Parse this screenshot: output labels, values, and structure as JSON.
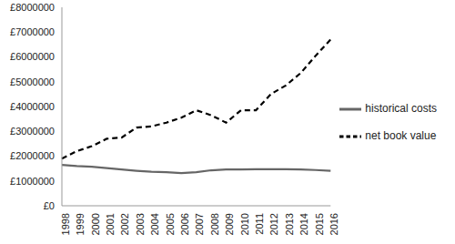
{
  "chart_data": {
    "type": "line",
    "categories": [
      "1998",
      "1999",
      "2000",
      "2001",
      "2002",
      "2003",
      "2004",
      "2005",
      "2006",
      "2007",
      "2008",
      "2009",
      "2010",
      "2011",
      "2012",
      "2013",
      "2014",
      "2015",
      "2016"
    ],
    "series": [
      {
        "name": "net book value",
        "color": "#000000",
        "line_style": "dashed",
        "values": [
          1900000,
          2200000,
          2400000,
          2700000,
          2750000,
          3150000,
          3200000,
          3350000,
          3550000,
          3850000,
          3650000,
          3350000,
          3850000,
          3850000,
          4500000,
          4850000,
          5350000,
          6050000,
          6700000
        ]
      },
      {
        "name": "historical costs",
        "color": "#666666",
        "line_style": "solid",
        "values": [
          1650000,
          1600000,
          1570000,
          1520000,
          1460000,
          1410000,
          1370000,
          1350000,
          1320000,
          1350000,
          1430000,
          1460000,
          1460000,
          1470000,
          1470000,
          1470000,
          1460000,
          1440000,
          1410000
        ]
      }
    ],
    "ylim": [
      0,
      8000000
    ],
    "yticks": [
      {
        "value": 0,
        "label": "£0"
      },
      {
        "value": 1000000,
        "label": "£1000000"
      },
      {
        "value": 2000000,
        "label": "£2000000"
      },
      {
        "value": 3000000,
        "label": "£3000000"
      },
      {
        "value": 4000000,
        "label": "£4000000"
      },
      {
        "value": 5000000,
        "label": "£5000000"
      },
      {
        "value": 6000000,
        "label": "£6000000"
      },
      {
        "value": 7000000,
        "label": "£7000000"
      },
      {
        "value": 8000000,
        "label": "£8000000"
      }
    ],
    "grid": false,
    "legend": "right"
  }
}
